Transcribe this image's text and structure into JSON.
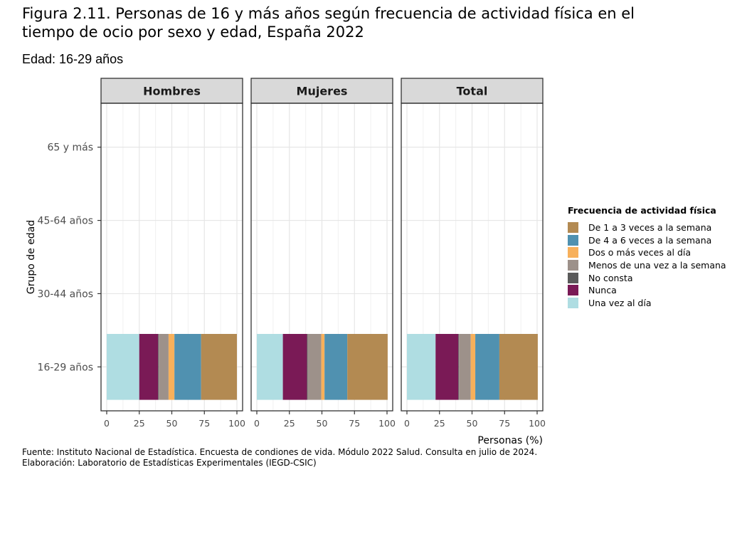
{
  "figure": {
    "title": "Figura 2.11. Personas de 16 y más años según frecuencia de actividad física en el tiempo de ocio por sexo y edad, España 2022",
    "subtitle": "Edad: 16-29 años",
    "caption_line1": "Fuente: Instituto Nacional de Estadística. Encuesta de condiones de vida. Módulo 2022 Salud. Consulta en julio de 2024.",
    "caption_line2": "Elaboración: Laboratorio de Estadísticas Experimentales (IEGD-CSIC)"
  },
  "chart_data": {
    "type": "bar",
    "orientation": "horizontal",
    "stacked": true,
    "facets": [
      "Hombres",
      "Mujeres",
      "Total"
    ],
    "categories": [
      "16-29 años",
      "30-44 años",
      "45-64 años",
      "65 y más"
    ],
    "xlabel": "Personas (%)",
    "ylabel": "Grupo de edad",
    "xlim": [
      0,
      100
    ],
    "xticks": [
      0,
      25,
      50,
      75,
      100
    ],
    "grid": true,
    "legend_title": "Frecuencia de actividad física",
    "legend_position": "right",
    "stack_order": [
      "Una vez al día",
      "Nunca",
      "No consta",
      "Menos de una vez a la semana",
      "Dos o más veces al día",
      "De 4 a 6 veces a la semana",
      "De 1 a 3 veces a la semana"
    ],
    "legend": [
      {
        "name": "De 1 a 3 veces a la semana",
        "color": "#b38a52"
      },
      {
        "name": "De 4 a 6 veces a la semana",
        "color": "#5091b0"
      },
      {
        "name": "Dos o más veces al día",
        "color": "#f7b05b"
      },
      {
        "name": "Menos de una vez a la semana",
        "color": "#9d918a"
      },
      {
        "name": "No consta",
        "color": "#5a5a5a"
      },
      {
        "name": "Nunca",
        "color": "#7a1a56"
      },
      {
        "name": "Una vez al día",
        "color": "#afdde2"
      }
    ],
    "series": [
      {
        "name": "Una vez al día",
        "values": {
          "Hombres": [
            25,
            null,
            null,
            null
          ],
          "Mujeres": [
            20,
            null,
            null,
            null
          ],
          "Total": [
            22,
            null,
            null,
            null
          ]
        }
      },
      {
        "name": "Nunca",
        "values": {
          "Hombres": [
            14.5,
            null,
            null,
            null
          ],
          "Mujeres": [
            18.5,
            null,
            null,
            null
          ],
          "Total": [
            17.5,
            null,
            null,
            null
          ]
        }
      },
      {
        "name": "No consta",
        "values": {
          "Hombres": [
            0.5,
            null,
            null,
            null
          ],
          "Mujeres": [
            0.5,
            null,
            null,
            null
          ],
          "Total": [
            0.5,
            null,
            null,
            null
          ]
        }
      },
      {
        "name": "Menos de una vez a la semana",
        "values": {
          "Hombres": [
            7.5,
            null,
            null,
            null
          ],
          "Mujeres": [
            10.5,
            null,
            null,
            null
          ],
          "Total": [
            9,
            null,
            null,
            null
          ]
        }
      },
      {
        "name": "Dos o más veces al día",
        "values": {
          "Hombres": [
            4.5,
            null,
            null,
            null
          ],
          "Mujeres": [
            2.5,
            null,
            null,
            null
          ],
          "Total": [
            3.5,
            null,
            null,
            null
          ]
        }
      },
      {
        "name": "De 4 a 6 veces a la semana",
        "values": {
          "Hombres": [
            20.5,
            null,
            null,
            null
          ],
          "Mujeres": [
            17.5,
            null,
            null,
            null
          ],
          "Total": [
            18.5,
            null,
            null,
            null
          ]
        }
      },
      {
        "name": "De 1 a 3 veces a la semana",
        "values": {
          "Hombres": [
            27.5,
            null,
            null,
            null
          ],
          "Mujeres": [
            31,
            null,
            null,
            null
          ],
          "Total": [
            29.5,
            null,
            null,
            null
          ]
        }
      }
    ]
  }
}
